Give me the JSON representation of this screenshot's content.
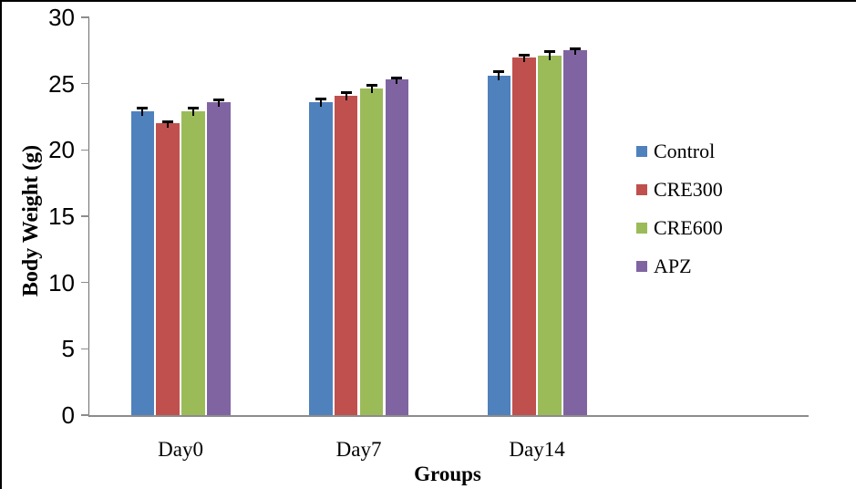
{
  "chart_data": {
    "type": "bar",
    "categories": [
      "Day0",
      "Day7",
      "Day14"
    ],
    "series": [
      {
        "name": "Control",
        "color": "#4F81BD",
        "values": [
          22.9,
          23.6,
          25.6
        ],
        "errors": [
          0.25,
          0.25,
          0.3
        ]
      },
      {
        "name": "CRE300",
        "color": "#C0504D",
        "values": [
          22.0,
          24.1,
          27.0
        ],
        "errors": [
          0.12,
          0.2,
          0.15
        ]
      },
      {
        "name": "CRE600",
        "color": "#9BBB59",
        "values": [
          22.9,
          24.6,
          27.1
        ],
        "errors": [
          0.25,
          0.25,
          0.3
        ]
      },
      {
        "name": "APZ",
        "color": "#8064A2",
        "values": [
          23.6,
          25.3,
          27.5
        ],
        "errors": [
          0.15,
          0.15,
          0.12
        ]
      }
    ],
    "xlabel": "Groups",
    "ylabel": "Body Weight (g)",
    "ylim": [
      0,
      30
    ],
    "yticks": [
      0,
      5,
      10,
      15,
      20,
      25,
      30
    ],
    "grid": false,
    "error_bars": true,
    "legend_position": "right",
    "axis_color": "#8c8c8c",
    "text_color": "#000000",
    "frame_border_color": "#000000"
  }
}
